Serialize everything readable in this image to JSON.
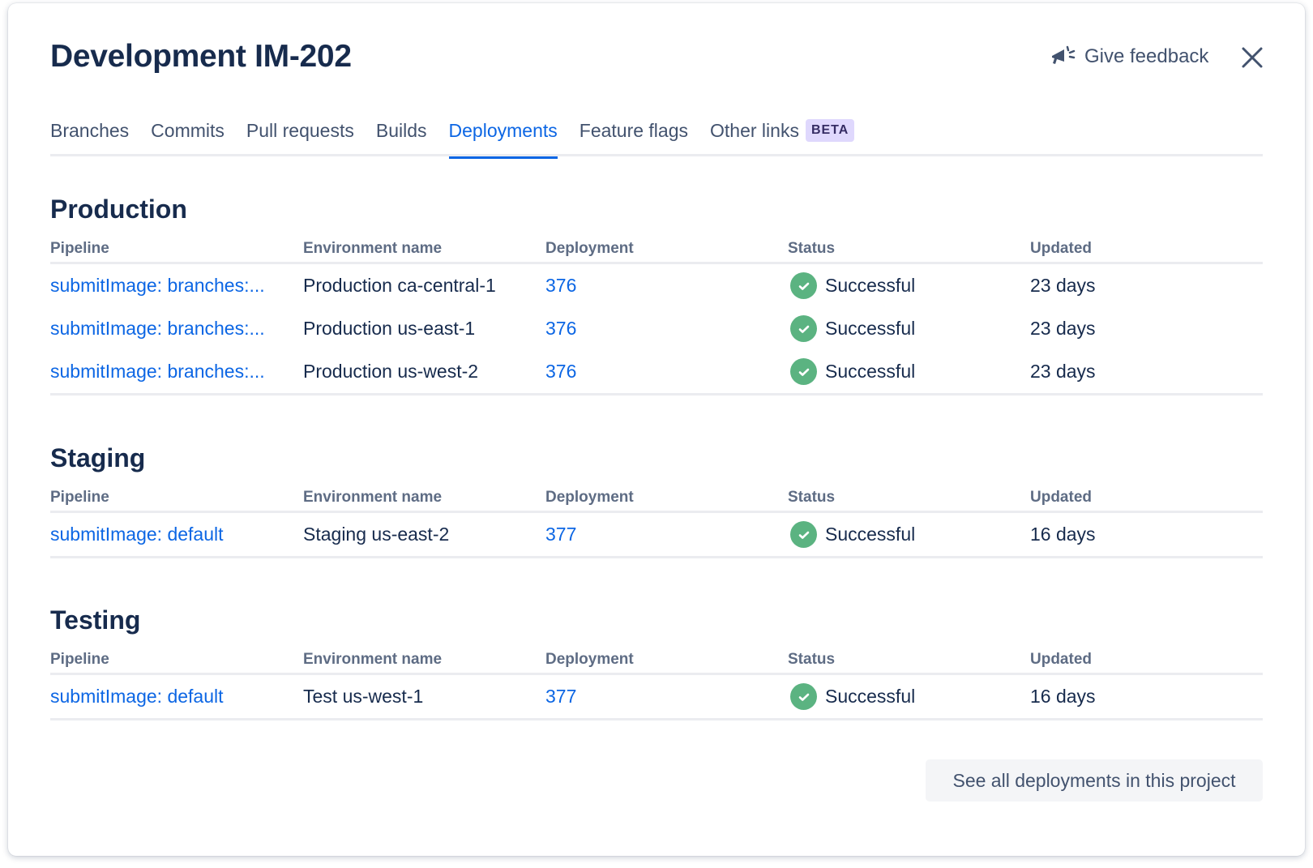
{
  "header": {
    "title": "Development IM-202",
    "feedback_label": "Give feedback"
  },
  "tabs": [
    {
      "label": "Branches"
    },
    {
      "label": "Commits"
    },
    {
      "label": "Pull requests"
    },
    {
      "label": "Builds"
    },
    {
      "label": "Deployments",
      "active": true
    },
    {
      "label": "Feature flags"
    },
    {
      "label": "Other links",
      "badge": "BETA"
    }
  ],
  "columns": [
    "Pipeline",
    "Environment name",
    "Deployment",
    "Status",
    "Updated"
  ],
  "sections": [
    {
      "title": "Production",
      "rows": [
        {
          "pipeline": "submitImage: branches:...",
          "environment": "Production ca-central-1",
          "deployment": "376",
          "status": "Successful",
          "updated": "23 days"
        },
        {
          "pipeline": "submitImage: branches:...",
          "environment": "Production us-east-1",
          "deployment": "376",
          "status": "Successful",
          "updated": "23 days"
        },
        {
          "pipeline": "submitImage: branches:...",
          "environment": "Production us-west-2",
          "deployment": "376",
          "status": "Successful",
          "updated": "23 days"
        }
      ]
    },
    {
      "title": "Staging",
      "rows": [
        {
          "pipeline": "submitImage: default",
          "environment": "Staging us-east-2",
          "deployment": "377",
          "status": "Successful",
          "updated": "16 days"
        }
      ]
    },
    {
      "title": "Testing",
      "rows": [
        {
          "pipeline": "submitImage: default",
          "environment": "Test us-west-1",
          "deployment": "377",
          "status": "Successful",
          "updated": "16 days"
        }
      ]
    }
  ],
  "footer": {
    "see_all_label": "See all deployments in this project"
  },
  "colors": {
    "accent": "#0c66e4",
    "success": "#5bb381"
  }
}
